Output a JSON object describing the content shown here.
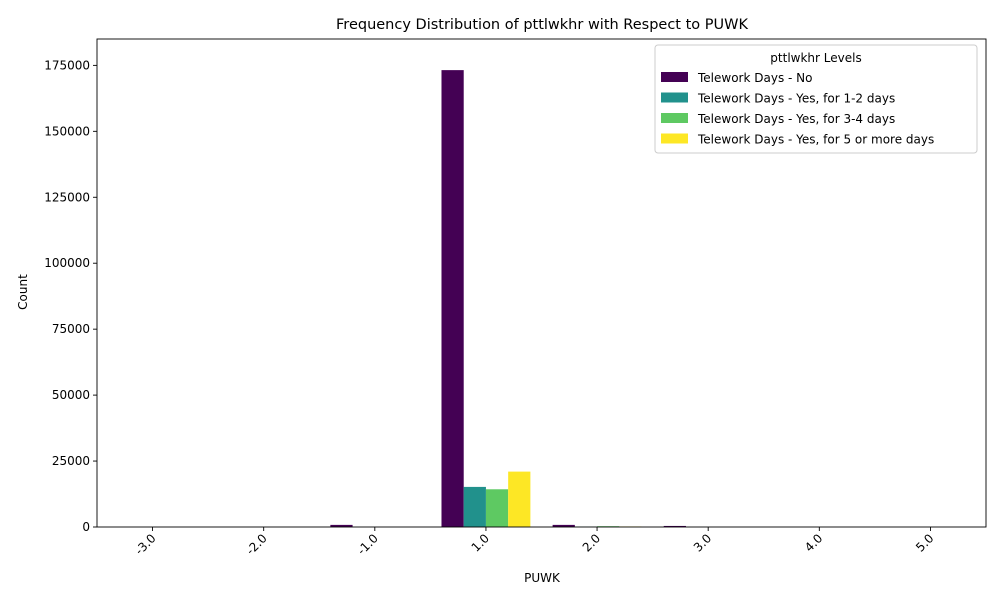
{
  "chart_data": {
    "type": "bar",
    "title": "Frequency Distribution of pttlwkhr with Respect to PUWK",
    "xlabel": "PUWK",
    "ylabel": "Count",
    "categories": [
      "-3.0",
      "-2.0",
      "-1.0",
      "1.0",
      "2.0",
      "3.0",
      "4.0",
      "5.0"
    ],
    "ylim": [
      0,
      185000
    ],
    "yticks": [
      0,
      25000,
      50000,
      75000,
      100000,
      125000,
      150000,
      175000
    ],
    "legend": {
      "title": "pttlwkhr Levels",
      "position": "top-right"
    },
    "grid": false,
    "series": [
      {
        "name": "Telework Days - No",
        "color": "#440154",
        "values": [
          0,
          0,
          800,
          173200,
          800,
          400,
          0,
          0
        ]
      },
      {
        "name": "Telework Days - Yes, for 1-2 days",
        "color": "#21918c",
        "values": [
          0,
          0,
          0,
          15200,
          100,
          0,
          0,
          0
        ]
      },
      {
        "name": "Telework Days - Yes, for 3-4 days",
        "color": "#5ec962",
        "values": [
          0,
          0,
          0,
          14300,
          300,
          0,
          0,
          0
        ]
      },
      {
        "name": "Telework Days - Yes, for 5 or more days",
        "color": "#fde725",
        "values": [
          0,
          0,
          0,
          21000,
          200,
          0,
          0,
          0
        ]
      }
    ]
  }
}
